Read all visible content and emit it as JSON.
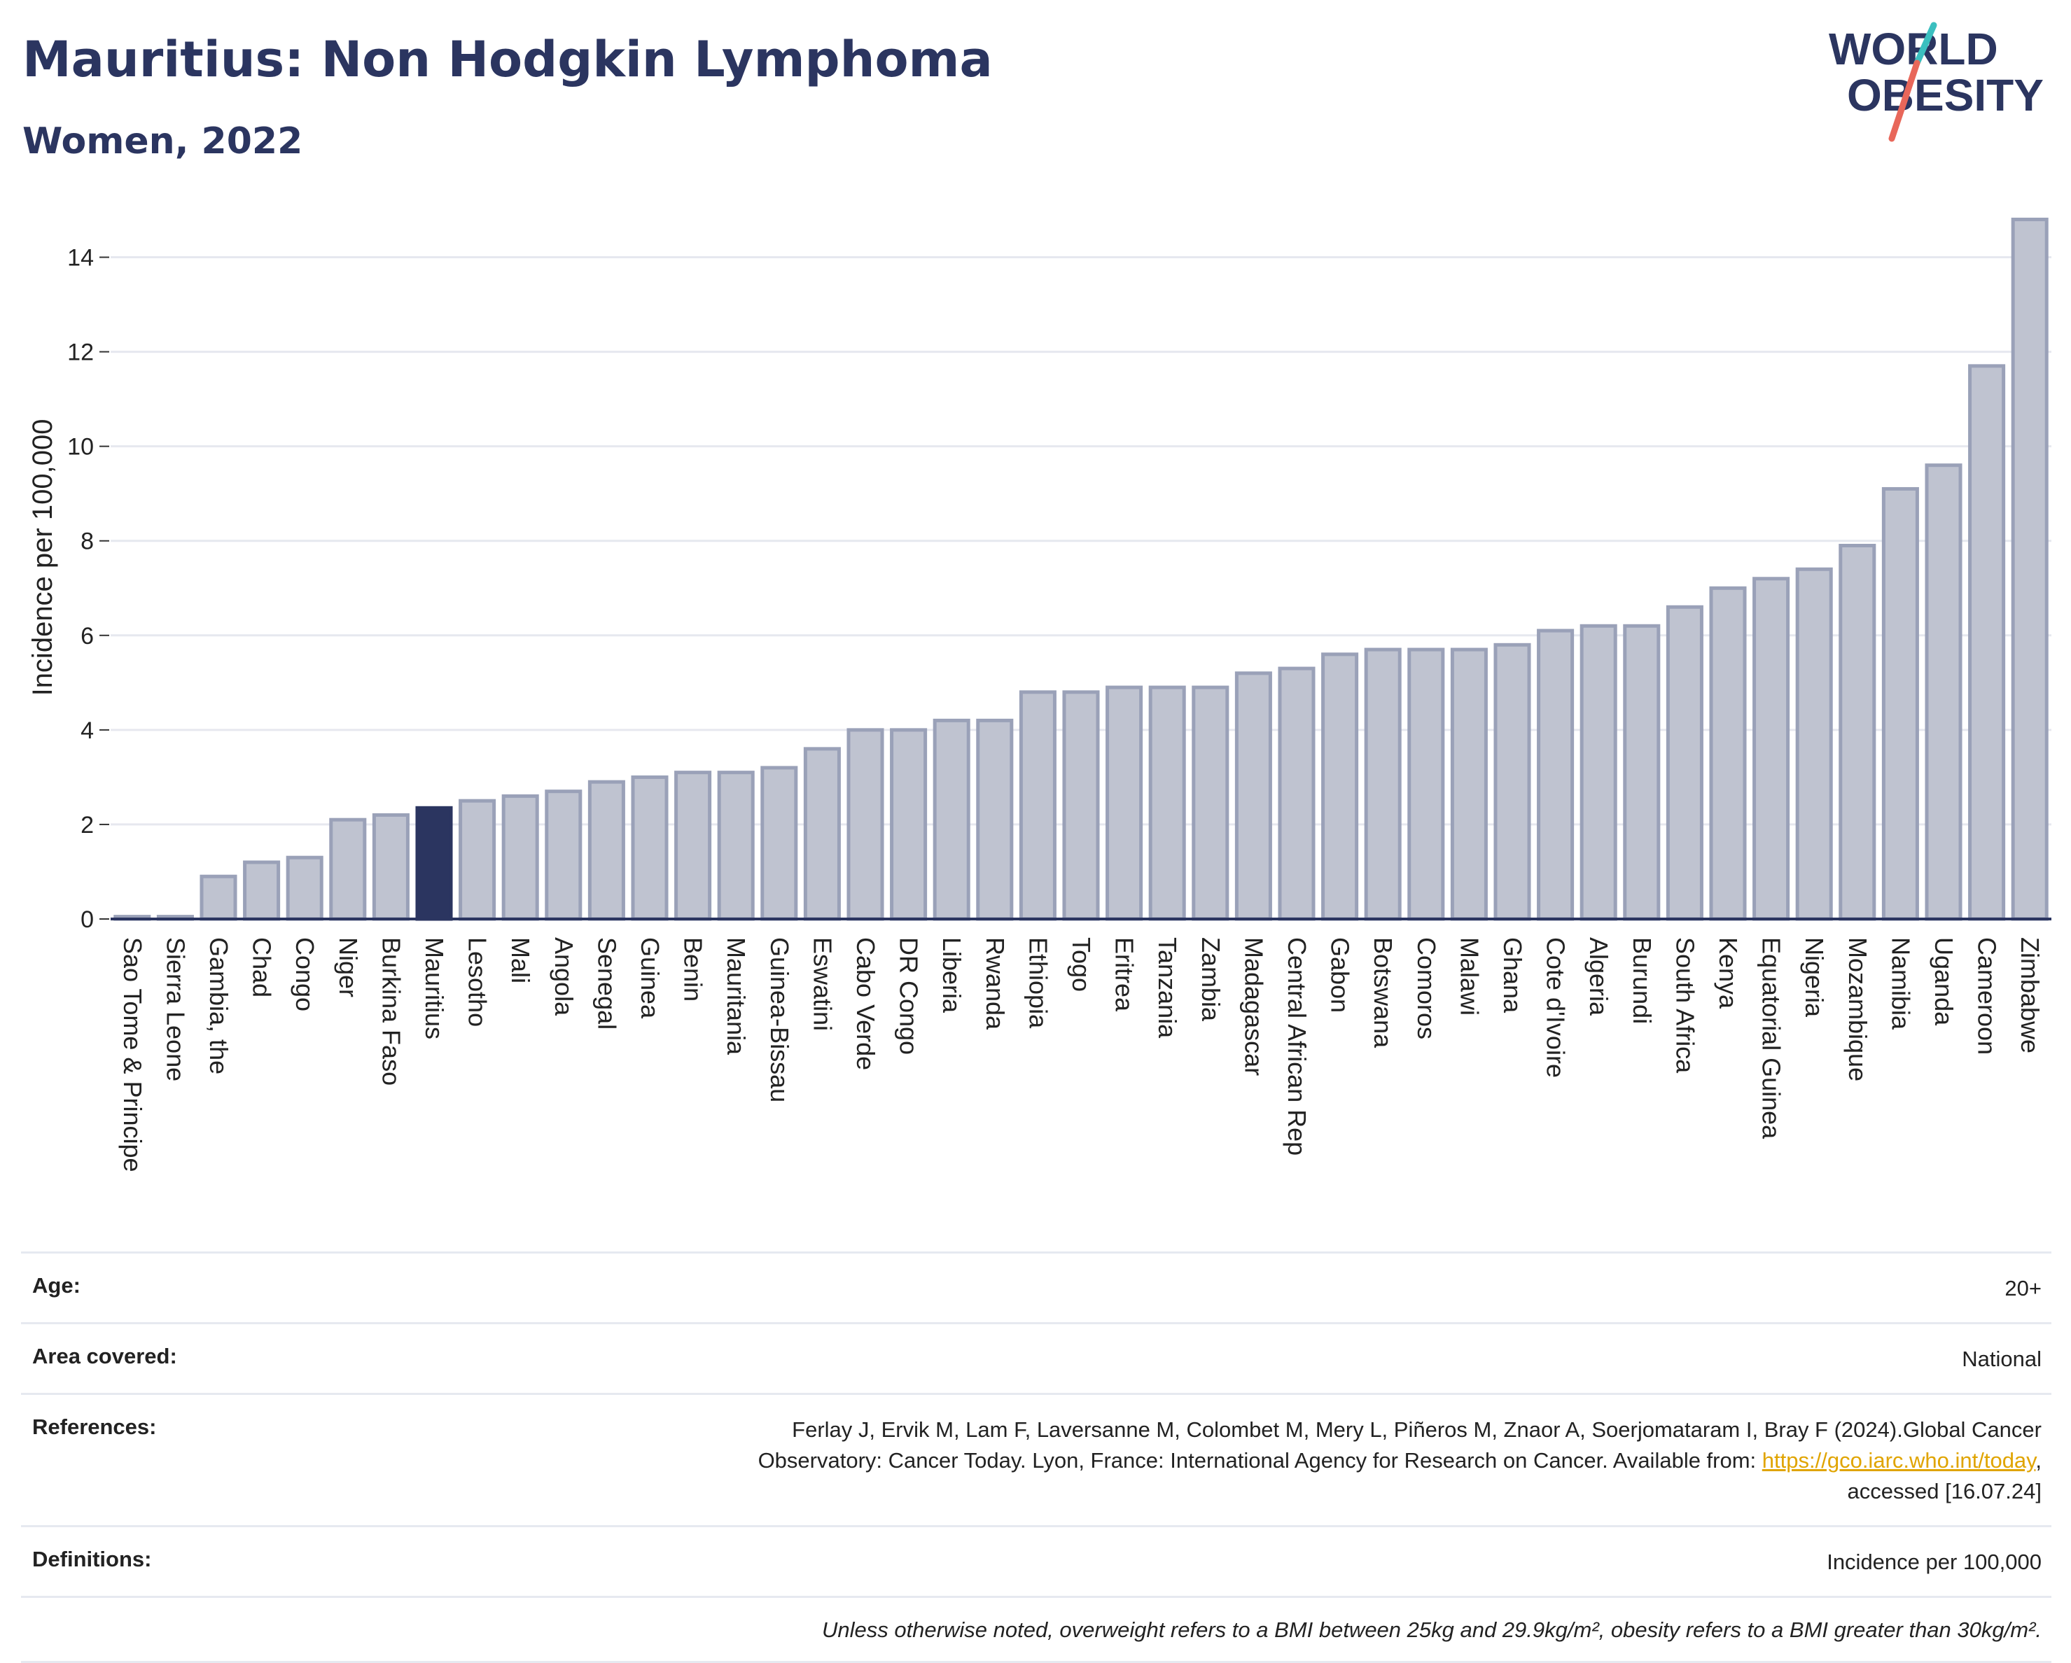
{
  "header": {
    "title": "Mauritius: Non Hodgkin Lymphoma",
    "subtitle": "Women, 2022",
    "logo_line1": "WORLD",
    "logo_line2": "OBESITY"
  },
  "colors": {
    "title": "#2b3560",
    "bar_default_fill": "#bfc3d0",
    "bar_default_stroke": "#9aa1b8",
    "bar_highlight": "#2b3560",
    "link": "#e0a400",
    "logo_teal": "#3bbfbf",
    "logo_coral": "#e8675a"
  },
  "chart_data": {
    "type": "bar",
    "ylabel": "Incidence per 100,000",
    "xlabel": "",
    "ylim": [
      0,
      15
    ],
    "yticks": [
      0,
      2,
      4,
      6,
      8,
      10,
      12,
      14
    ],
    "grid": true,
    "highlight": "Mauritius",
    "categories": [
      "Sao Tome & Principe",
      "Sierra Leone",
      "Gambia, the",
      "Chad",
      "Congo",
      "Niger",
      "Burkina Faso",
      "Mauritius",
      "Lesotho",
      "Mali",
      "Angola",
      "Senegal",
      "Guinea",
      "Benin",
      "Mauritania",
      "Guinea-Bissau",
      "Eswatini",
      "Cabo Verde",
      "DR Congo",
      "Liberia",
      "Rwanda",
      "Ethiopia",
      "Togo",
      "Eritrea",
      "Tanzania",
      "Zambia",
      "Madagascar",
      "Central African Rep",
      "Gabon",
      "Botswana",
      "Comoros",
      "Malawi",
      "Ghana",
      "Cote d'Ivoire",
      "Algeria",
      "Burundi",
      "South Africa",
      "Kenya",
      "Equatorial Guinea",
      "Nigeria",
      "Mozambique",
      "Namibia",
      "Uganda",
      "Cameroon",
      "Zimbabwe"
    ],
    "values": [
      0.05,
      0.05,
      0.9,
      1.2,
      1.3,
      2.1,
      2.2,
      2.35,
      2.5,
      2.6,
      2.7,
      2.9,
      3.0,
      3.1,
      3.1,
      3.2,
      3.6,
      4.0,
      4.0,
      4.2,
      4.2,
      4.8,
      4.8,
      4.9,
      4.9,
      4.9,
      5.2,
      5.3,
      5.6,
      5.7,
      5.7,
      5.7,
      5.8,
      6.1,
      6.2,
      6.2,
      6.6,
      7.0,
      7.2,
      7.4,
      7.9,
      9.1,
      9.6,
      11.7,
      14.8
    ]
  },
  "info": {
    "age_label": "Age:",
    "age_value": "20+",
    "area_label": "Area covered:",
    "area_value": "National",
    "references_label": "References:",
    "references_line1": "Ferlay J, Ervik M, Lam F, Laversanne M, Colombet M, Mery L, Piñeros M, Znaor A, Soerjomataram I, Bray F (2024).Global Cancer",
    "references_line2_pre": "Observatory: Cancer Today. Lyon, France: International Agency for Research on Cancer. Available from: ",
    "references_link": "https://gco.iarc.who.int/today",
    "references_line2_post": ",",
    "references_line3": "accessed [16.07.24]",
    "definitions_label": "Definitions:",
    "definitions_value": "Incidence per 100,000",
    "note": "Unless otherwise noted, overweight refers to a BMI between 25kg and 29.9kg/m², obesity refers to a BMI greater than 30kg/m²."
  }
}
